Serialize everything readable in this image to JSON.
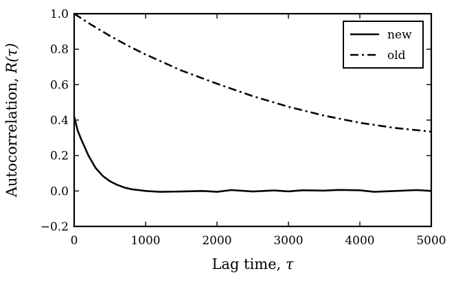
{
  "chart_data": {
    "type": "line",
    "xlabel_text": "Lag time, ",
    "xlabel_symbol": "τ",
    "ylabel_text": "Autocorrelation, ",
    "ylabel_symbol": "R(τ)",
    "xlim": [
      0,
      5000
    ],
    "ylim": [
      -0.2,
      1.0
    ],
    "x_ticks": [
      0,
      1000,
      2000,
      3000,
      4000,
      5000
    ],
    "x_tick_labels": [
      "0",
      "1000",
      "2000",
      "3000",
      "4000",
      "5000"
    ],
    "y_ticks": [
      -0.2,
      0.0,
      0.2,
      0.4,
      0.6,
      0.8,
      1.0
    ],
    "y_tick_labels": [
      "−0.2",
      "0.0",
      "0.2",
      "0.4",
      "0.6",
      "0.8",
      "1.0"
    ],
    "grid": false,
    "legend_position": "top-right",
    "series": [
      {
        "name": "new",
        "style": "solid",
        "color": "#000000",
        "x": [
          0,
          50,
          100,
          200,
          300,
          400,
          500,
          600,
          700,
          800,
          900,
          1000,
          1200,
          1500,
          1800,
          2000,
          2200,
          2500,
          2800,
          3000,
          3200,
          3500,
          3700,
          4000,
          4200,
          4500,
          4800,
          5000
        ],
        "y": [
          0.42,
          0.34,
          0.29,
          0.2,
          0.13,
          0.085,
          0.055,
          0.035,
          0.02,
          0.01,
          0.005,
          0.0,
          -0.005,
          -0.003,
          0.0,
          -0.005,
          0.005,
          -0.003,
          0.003,
          -0.002,
          0.004,
          0.002,
          0.006,
          0.004,
          -0.005,
          0.0,
          0.005,
          0.0
        ]
      },
      {
        "name": "old",
        "style": "dashdot",
        "color": "#000000",
        "x": [
          0,
          250,
          500,
          750,
          1000,
          1500,
          2000,
          2500,
          3000,
          3500,
          4000,
          4500,
          5000
        ],
        "y": [
          1.0,
          0.935,
          0.875,
          0.82,
          0.77,
          0.68,
          0.605,
          0.535,
          0.475,
          0.425,
          0.385,
          0.355,
          0.335
        ]
      }
    ]
  }
}
